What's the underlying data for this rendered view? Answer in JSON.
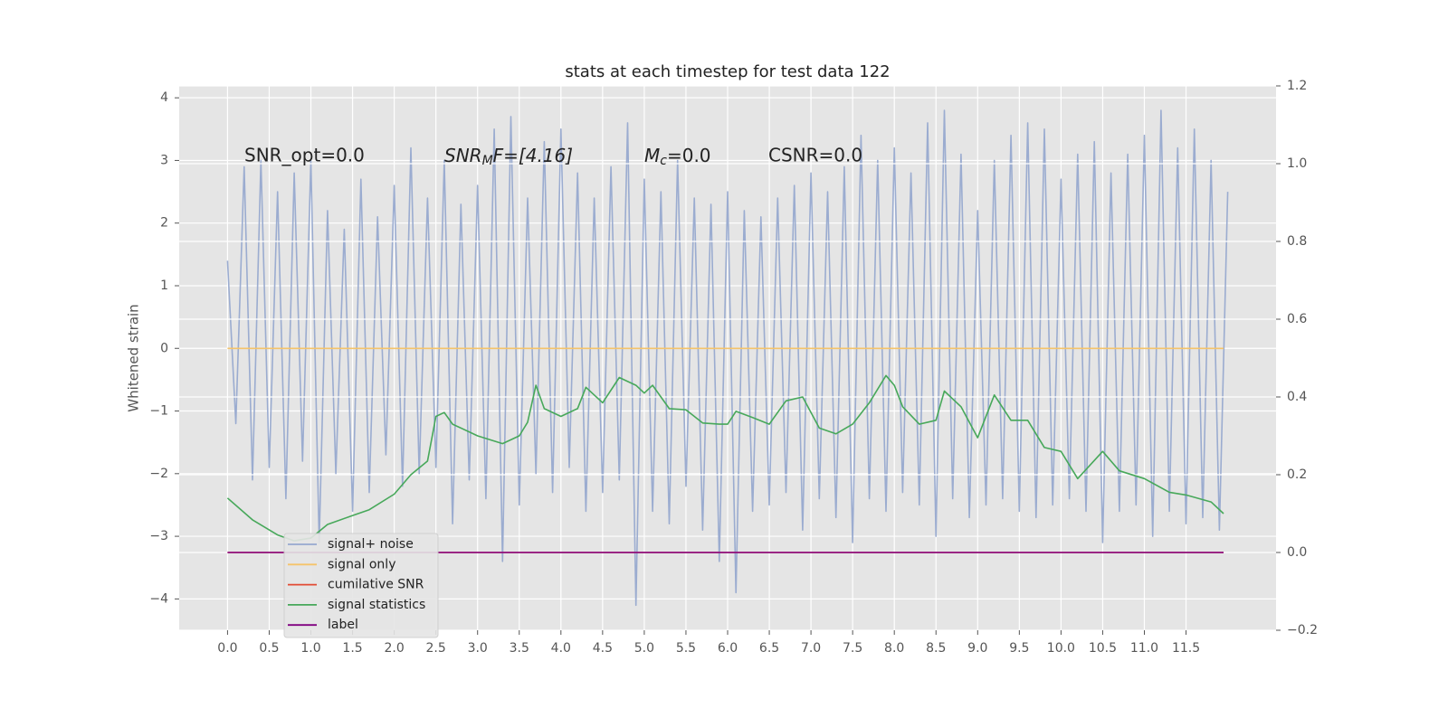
{
  "chart_data": {
    "type": "line",
    "title": "stats at each timestep for test data 122",
    "y_label": "Whitened strain",
    "annotations": [
      "SNR_opt=0.0",
      {
        "main": "SNR",
        "sub": "M",
        "tail": "F=[4.16]"
      },
      {
        "main": "M",
        "sub": "c",
        "tail": "=0.0"
      },
      "CSNR=0.0"
    ],
    "xlim": [
      -0.58,
      12.58
    ],
    "xticks": [
      {
        "value": 0,
        "label": "0.0"
      },
      0.5,
      {
        "value": 1,
        "label": "1.0"
      },
      1.5,
      {
        "value": 2,
        "label": "2.0"
      },
      2.5,
      {
        "value": 3,
        "label": "3.0"
      },
      3.5,
      {
        "value": 4,
        "label": "4.0"
      },
      4.5,
      {
        "value": 5,
        "label": "5.0"
      },
      5.5,
      {
        "value": 6,
        "label": "6.0"
      },
      6.5,
      {
        "value": 7,
        "label": "7.0"
      },
      7.5,
      {
        "value": 8,
        "label": "8.0"
      },
      8.5,
      {
        "value": 9,
        "label": "9.0"
      },
      9.5,
      {
        "value": 10,
        "label": "10.0"
      },
      10.5,
      {
        "value": 11,
        "label": "11.0"
      },
      11.5
    ],
    "ylim": [
      -4.5,
      4.19
    ],
    "yticks": [
      {
        "value": -4,
        "label": "−4"
      },
      {
        "value": -3,
        "label": "−3"
      },
      {
        "value": -2,
        "label": "−2"
      },
      {
        "value": -1,
        "label": "−1"
      },
      0,
      1,
      2,
      3,
      4
    ],
    "y2lim": [
      -0.2,
      1.2
    ],
    "y2ticks": [
      {
        "value": -0.2,
        "label": "−0.2"
      },
      {
        "value": 0,
        "label": "0.0"
      },
      0.2,
      0.4,
      0.6,
      0.8,
      {
        "value": 1,
        "label": "1.0"
      },
      1.2
    ],
    "grid": true,
    "legend": "lower left",
    "series": [
      {
        "name": "signal+ noise",
        "color": "#97a9cf",
        "x": [
          0,
          0.1,
          0.2,
          0.3,
          0.4,
          0.5,
          0.6,
          0.7,
          0.8,
          0.9,
          1,
          1.1,
          1.2,
          1.3,
          1.4,
          1.5,
          1.6,
          1.7,
          1.8,
          1.9,
          2,
          2.1,
          2.2,
          2.3,
          2.4,
          2.5,
          2.6,
          2.7,
          2.8,
          2.9,
          3,
          3.1,
          3.2,
          3.3,
          3.4,
          3.5,
          3.6,
          3.7,
          3.8,
          3.9,
          4,
          4.1,
          4.2,
          4.3,
          4.4,
          4.5,
          4.6,
          4.7,
          4.8,
          4.9,
          5,
          5.1,
          5.2,
          5.3,
          5.4,
          5.5,
          5.6,
          5.7,
          5.8,
          5.9,
          6,
          6.1,
          6.2,
          6.3,
          6.4,
          6.5,
          6.6,
          6.7,
          6.8,
          6.9,
          7,
          7.1,
          7.2,
          7.3,
          7.4,
          7.5,
          7.6,
          7.7,
          7.8,
          7.9,
          8,
          8.1,
          8.2,
          8.3,
          8.4,
          8.5,
          8.6,
          8.7,
          8.8,
          8.9,
          9,
          9.1,
          9.2,
          9.3,
          9.4,
          9.5,
          9.6,
          9.7,
          9.8,
          9.9,
          10,
          10.1,
          10.2,
          10.3,
          10.4,
          10.5,
          10.6,
          10.7,
          10.8,
          10.9,
          11,
          11.1,
          11.2,
          11.3,
          11.4,
          11.5,
          11.6,
          11.7,
          11.8,
          11.9,
          12
        ],
        "values": [
          1.4,
          -1.2,
          2.9,
          -2.1,
          3.0,
          -1.9,
          2.5,
          -2.4,
          2.8,
          -1.8,
          3.0,
          -3.1,
          2.2,
          -2.0,
          1.9,
          -2.6,
          2.7,
          -2.3,
          2.1,
          -1.7,
          2.6,
          -2.2,
          3.2,
          -2.0,
          2.4,
          -1.9,
          3.0,
          -2.8,
          2.3,
          -2.1,
          2.6,
          -2.4,
          3.5,
          -3.4,
          3.7,
          -2.5,
          2.4,
          -2.0,
          3.3,
          -2.3,
          3.5,
          -1.9,
          2.8,
          -2.6,
          2.4,
          -2.3,
          2.9,
          -2.1,
          3.6,
          -4.1,
          2.7,
          -2.6,
          2.5,
          -2.8,
          3.0,
          -2.2,
          2.4,
          -2.9,
          2.3,
          -3.4,
          2.5,
          -3.9,
          2.2,
          -2.6,
          2.1,
          -2.5,
          2.4,
          -2.3,
          2.6,
          -2.9,
          2.8,
          -2.4,
          2.5,
          -2.7,
          2.9,
          -3.1,
          3.4,
          -2.4,
          3.0,
          -2.6,
          3.2,
          -2.3,
          2.8,
          -2.5,
          3.6,
          -3.0,
          3.8,
          -2.4,
          3.1,
          -2.7,
          2.2,
          -2.5,
          3.0,
          -2.4,
          3.4,
          -2.6,
          3.6,
          -2.7,
          3.5,
          -2.5,
          2.7,
          -2.4,
          3.1,
          -2.6,
          3.3,
          -3.1,
          2.8,
          -2.6,
          3.1,
          -2.5,
          3.4,
          -3.0,
          3.8,
          -2.6,
          3.2,
          -2.8,
          3.5,
          -2.7,
          3.0,
          -2.9,
          2.5
        ]
      },
      {
        "name": "signal only",
        "color": "#f5c46a",
        "x": [
          0,
          11.95
        ],
        "values": [
          0,
          0
        ]
      },
      {
        "name": "cumilative SNR",
        "color": "#e24a33",
        "axis": "y2",
        "x": [
          0,
          11.95
        ],
        "values": [
          0,
          0
        ]
      },
      {
        "name": "signal statistics",
        "color": "#47a85a",
        "axis": "y2",
        "x": [
          0,
          0.3,
          0.6,
          0.8,
          1,
          1.2,
          1.5,
          1.7,
          2,
          2.2,
          2.4,
          2.5,
          2.6,
          2.7,
          3,
          3.3,
          3.5,
          3.6,
          3.7,
          3.8,
          4,
          4.2,
          4.3,
          4.5,
          4.7,
          4.9,
          5,
          5.1,
          5.3,
          5.5,
          5.7,
          5.9,
          6,
          6.1,
          6.3,
          6.5,
          6.7,
          6.9,
          7.1,
          7.3,
          7.5,
          7.7,
          7.9,
          8,
          8.1,
          8.3,
          8.5,
          8.6,
          8.8,
          9,
          9.2,
          9.4,
          9.6,
          9.8,
          10,
          10.2,
          10.5,
          10.7,
          11,
          11.3,
          11.5,
          11.8,
          11.95
        ],
        "values": [
          0.14,
          0.084,
          0.045,
          0.03,
          0.037,
          0.072,
          0.095,
          0.11,
          0.15,
          0.2,
          0.235,
          0.35,
          0.36,
          0.33,
          0.3,
          0.28,
          0.3,
          0.335,
          0.43,
          0.37,
          0.35,
          0.37,
          0.425,
          0.385,
          0.45,
          0.43,
          0.41,
          0.43,
          0.37,
          0.367,
          0.333,
          0.33,
          0.33,
          0.363,
          0.347,
          0.33,
          0.39,
          0.4,
          0.32,
          0.305,
          0.33,
          0.385,
          0.455,
          0.43,
          0.375,
          0.33,
          0.34,
          0.415,
          0.375,
          0.295,
          0.405,
          0.34,
          0.34,
          0.27,
          0.26,
          0.19,
          0.26,
          0.21,
          0.19,
          0.155,
          0.148,
          0.13,
          0.1
        ]
      },
      {
        "name": "label",
        "color": "#800080",
        "axis": "y2",
        "x": [
          0,
          11.95
        ],
        "values": [
          0,
          0
        ]
      }
    ]
  }
}
